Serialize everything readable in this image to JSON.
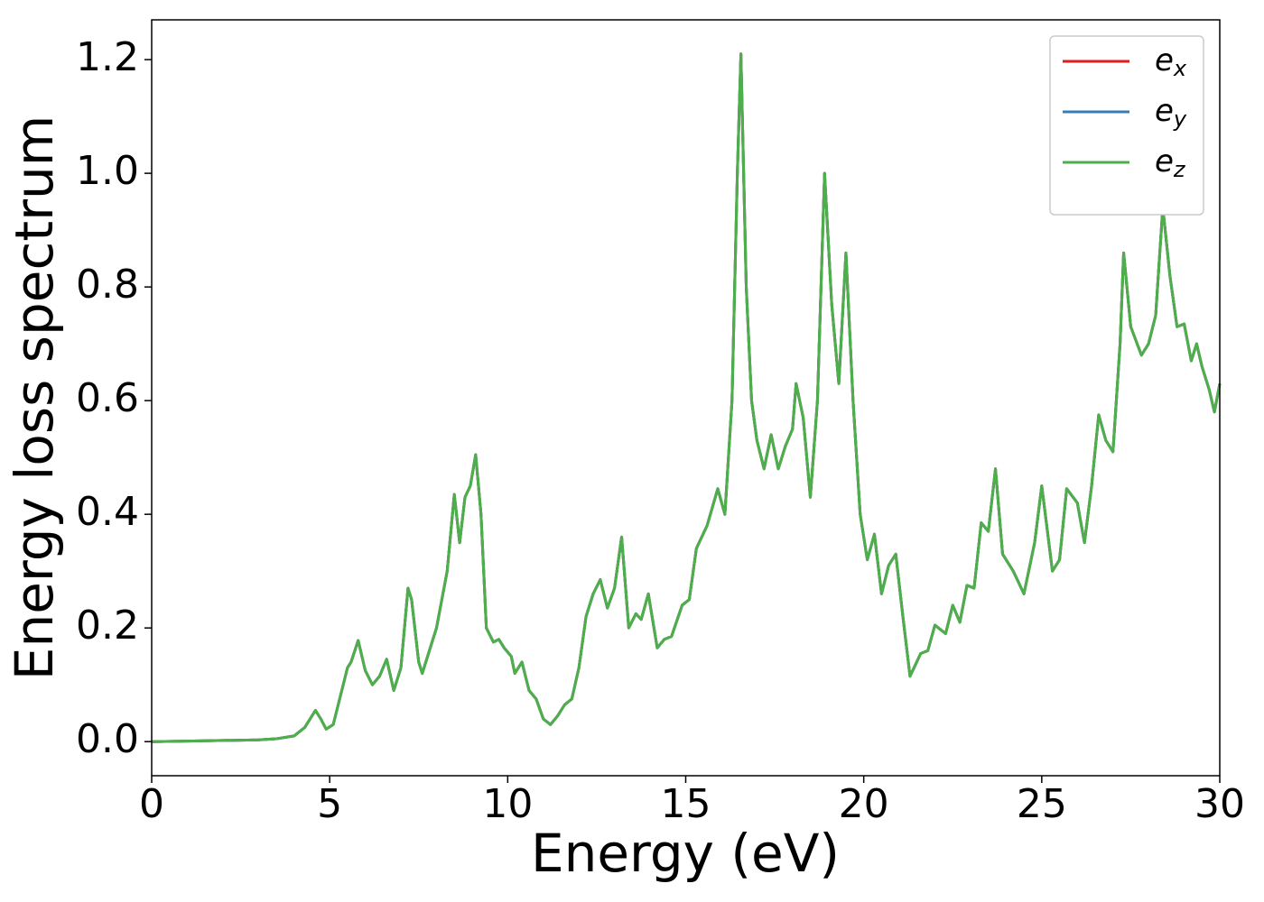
{
  "chart_data": {
    "type": "line",
    "xlabel": "Energy (eV)",
    "ylabel": "Energy loss spectrum",
    "xlim": [
      0,
      30
    ],
    "ylim": [
      -0.06,
      1.27
    ],
    "xticks": [
      0,
      5,
      10,
      15,
      20,
      25,
      30
    ],
    "yticks": [
      {
        "value": 0,
        "label": "0.0"
      },
      {
        "value": 0.2,
        "label": "0.2"
      },
      {
        "value": 0.4,
        "label": "0.4"
      },
      {
        "value": 0.6,
        "label": "0.6"
      },
      {
        "value": 0.8,
        "label": "0.8"
      },
      {
        "value": 1.0,
        "label": "1.0"
      },
      {
        "value": 1.2,
        "label": "1.2"
      }
    ],
    "legend": "upper right",
    "x": [
      0,
      1,
      2,
      3,
      3.5,
      4,
      4.3,
      4.6,
      4.75,
      4.9,
      5.1,
      5.3,
      5.5,
      5.6,
      5.8,
      6,
      6.2,
      6.4,
      6.6,
      6.8,
      7,
      7.2,
      7.3,
      7.5,
      7.6,
      7.8,
      8,
      8.3,
      8.5,
      8.65,
      8.8,
      8.95,
      9.1,
      9.25,
      9.4,
      9.6,
      9.75,
      9.9,
      10.1,
      10.2,
      10.4,
      10.6,
      10.8,
      11,
      11.2,
      11.4,
      11.6,
      11.8,
      12,
      12.2,
      12.4,
      12.6,
      12.8,
      13,
      13.2,
      13.4,
      13.6,
      13.75,
      13.95,
      14.2,
      14.4,
      14.6,
      14.9,
      15.1,
      15.3,
      15.6,
      15.9,
      16.1,
      16.3,
      16.45,
      16.55,
      16.7,
      16.85,
      17,
      17.2,
      17.4,
      17.6,
      17.8,
      18,
      18.1,
      18.3,
      18.5,
      18.7,
      18.9,
      19.1,
      19.3,
      19.5,
      19.7,
      19.9,
      20.1,
      20.3,
      20.5,
      20.7,
      20.9,
      21.1,
      21.3,
      21.6,
      21.8,
      22,
      22.3,
      22.5,
      22.7,
      22.9,
      23.1,
      23.3,
      23.5,
      23.7,
      23.9,
      24.2,
      24.5,
      24.8,
      25,
      25.3,
      25.5,
      25.7,
      26,
      26.2,
      26.4,
      26.6,
      26.8,
      27,
      27.2,
      27.3,
      27.5,
      27.8,
      28,
      28.2,
      28.4,
      28.6,
      28.8,
      29,
      29.2,
      29.35,
      29.5,
      29.7,
      29.85,
      30
    ],
    "series": [
      {
        "name": "e_x",
        "color": "#e41a1c",
        "values": [
          0,
          0.001,
          0.002,
          0.003,
          0.005,
          0.01,
          0.025,
          0.055,
          0.04,
          0.022,
          0.03,
          0.08,
          0.13,
          0.14,
          0.178,
          0.125,
          0.1,
          0.115,
          0.145,
          0.09,
          0.13,
          0.27,
          0.25,
          0.14,
          0.12,
          0.16,
          0.2,
          0.3,
          0.435,
          0.35,
          0.43,
          0.45,
          0.505,
          0.4,
          0.2,
          0.175,
          0.18,
          0.165,
          0.15,
          0.12,
          0.14,
          0.09,
          0.075,
          0.04,
          0.03,
          0.045,
          0.065,
          0.075,
          0.13,
          0.22,
          0.26,
          0.285,
          0.235,
          0.27,
          0.36,
          0.2,
          0.225,
          0.215,
          0.26,
          0.165,
          0.18,
          0.185,
          0.24,
          0.25,
          0.34,
          0.38,
          0.445,
          0.4,
          0.6,
          1.0,
          1.21,
          0.8,
          0.6,
          0.53,
          0.48,
          0.54,
          0.48,
          0.52,
          0.55,
          0.63,
          0.57,
          0.43,
          0.6,
          1.0,
          0.77,
          0.63,
          0.86,
          0.6,
          0.4,
          0.32,
          0.365,
          0.26,
          0.31,
          0.33,
          0.22,
          0.115,
          0.155,
          0.16,
          0.205,
          0.19,
          0.24,
          0.21,
          0.275,
          0.27,
          0.385,
          0.37,
          0.48,
          0.33,
          0.3,
          0.26,
          0.35,
          0.45,
          0.3,
          0.32,
          0.445,
          0.42,
          0.35,
          0.45,
          0.575,
          0.53,
          0.51,
          0.7,
          0.86,
          0.73,
          0.68,
          0.7,
          0.75,
          0.94,
          0.82,
          0.73,
          0.735,
          0.67,
          0.7,
          0.66,
          0.62,
          0.58,
          0.63
        ]
      },
      {
        "name": "e_y",
        "color": "#377eb8",
        "values": [
          0,
          0.001,
          0.002,
          0.003,
          0.005,
          0.01,
          0.025,
          0.055,
          0.04,
          0.022,
          0.03,
          0.08,
          0.13,
          0.14,
          0.178,
          0.125,
          0.1,
          0.115,
          0.145,
          0.09,
          0.13,
          0.27,
          0.25,
          0.14,
          0.12,
          0.16,
          0.2,
          0.3,
          0.435,
          0.35,
          0.43,
          0.45,
          0.505,
          0.4,
          0.2,
          0.175,
          0.18,
          0.165,
          0.15,
          0.12,
          0.14,
          0.09,
          0.075,
          0.04,
          0.03,
          0.045,
          0.065,
          0.075,
          0.13,
          0.22,
          0.26,
          0.285,
          0.235,
          0.27,
          0.36,
          0.2,
          0.225,
          0.215,
          0.26,
          0.165,
          0.18,
          0.185,
          0.24,
          0.25,
          0.34,
          0.38,
          0.445,
          0.4,
          0.6,
          1.0,
          1.21,
          0.8,
          0.6,
          0.53,
          0.48,
          0.54,
          0.48,
          0.52,
          0.55,
          0.63,
          0.57,
          0.43,
          0.6,
          1.0,
          0.77,
          0.63,
          0.86,
          0.6,
          0.4,
          0.32,
          0.365,
          0.26,
          0.31,
          0.33,
          0.22,
          0.115,
          0.155,
          0.16,
          0.205,
          0.19,
          0.24,
          0.21,
          0.275,
          0.27,
          0.385,
          0.37,
          0.48,
          0.33,
          0.3,
          0.26,
          0.35,
          0.45,
          0.3,
          0.32,
          0.445,
          0.42,
          0.35,
          0.45,
          0.575,
          0.53,
          0.51,
          0.7,
          0.86,
          0.73,
          0.68,
          0.7,
          0.75,
          0.94,
          0.82,
          0.73,
          0.735,
          0.67,
          0.7,
          0.66,
          0.62,
          0.58,
          0.63
        ]
      },
      {
        "name": "e_z",
        "color": "#4daf4a",
        "values": [
          0,
          0.001,
          0.002,
          0.003,
          0.005,
          0.01,
          0.025,
          0.055,
          0.04,
          0.022,
          0.03,
          0.08,
          0.13,
          0.14,
          0.178,
          0.125,
          0.1,
          0.115,
          0.145,
          0.09,
          0.13,
          0.27,
          0.25,
          0.14,
          0.12,
          0.16,
          0.2,
          0.3,
          0.435,
          0.35,
          0.43,
          0.45,
          0.505,
          0.4,
          0.2,
          0.175,
          0.18,
          0.165,
          0.15,
          0.12,
          0.14,
          0.09,
          0.075,
          0.04,
          0.03,
          0.045,
          0.065,
          0.075,
          0.13,
          0.22,
          0.26,
          0.285,
          0.235,
          0.27,
          0.36,
          0.2,
          0.225,
          0.215,
          0.26,
          0.165,
          0.18,
          0.185,
          0.24,
          0.25,
          0.34,
          0.38,
          0.445,
          0.4,
          0.6,
          1.0,
          1.21,
          0.8,
          0.6,
          0.53,
          0.48,
          0.54,
          0.48,
          0.52,
          0.55,
          0.63,
          0.57,
          0.43,
          0.6,
          1.0,
          0.77,
          0.63,
          0.86,
          0.6,
          0.4,
          0.32,
          0.365,
          0.26,
          0.31,
          0.33,
          0.22,
          0.115,
          0.155,
          0.16,
          0.205,
          0.19,
          0.24,
          0.21,
          0.275,
          0.27,
          0.385,
          0.37,
          0.48,
          0.33,
          0.3,
          0.26,
          0.35,
          0.45,
          0.3,
          0.32,
          0.445,
          0.42,
          0.35,
          0.45,
          0.575,
          0.53,
          0.51,
          0.7,
          0.86,
          0.73,
          0.68,
          0.7,
          0.75,
          0.94,
          0.82,
          0.73,
          0.735,
          0.67,
          0.7,
          0.66,
          0.62,
          0.58,
          0.63
        ]
      }
    ]
  }
}
